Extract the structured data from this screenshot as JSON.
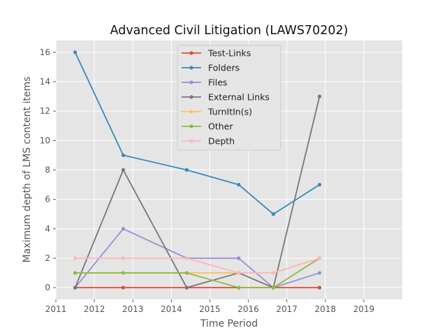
{
  "chart_data": {
    "type": "line",
    "title": "Advanced Civil Litigation (LAWS70202)",
    "xlabel": "Time Period",
    "ylabel": "Maximum depth of LMS content items",
    "xlim": [
      2011.0,
      2020.0
    ],
    "ylim": [
      -0.8,
      16.8
    ],
    "x_ticks": [
      "2011",
      "2012",
      "2013",
      "2014",
      "2015",
      "2016",
      "2017",
      "2018",
      "2019"
    ],
    "y_ticks": [
      "0",
      "2",
      "4",
      "6",
      "8",
      "10",
      "12",
      "14",
      "16"
    ],
    "grid": true,
    "legend_position": "upper-center",
    "x": [
      2011.5,
      2012.75,
      2014.4,
      2015.75,
      2016.65,
      2017.85
    ],
    "series": [
      {
        "name": "Test-Links",
        "color": "#e24a33",
        "values": [
          0,
          0,
          0,
          0,
          0,
          0
        ]
      },
      {
        "name": "Folders",
        "color": "#348abd",
        "values": [
          16,
          9,
          8,
          7,
          5,
          7
        ]
      },
      {
        "name": "Files",
        "color": "#988ed5",
        "values": [
          0,
          4,
          2,
          2,
          0,
          1
        ]
      },
      {
        "name": "External Links",
        "color": "#777777",
        "values": [
          0,
          8,
          0,
          1,
          0,
          13
        ]
      },
      {
        "name": "TurnItIn(s)",
        "color": "#fbc15e",
        "values": [
          1,
          1,
          1,
          1,
          1,
          2
        ]
      },
      {
        "name": "Other",
        "color": "#8eba42",
        "values": [
          1,
          1,
          1,
          0,
          0,
          2
        ]
      },
      {
        "name": "Depth",
        "color": "#ffb5b8",
        "values": [
          2,
          2,
          2,
          1,
          1,
          2
        ]
      }
    ]
  }
}
